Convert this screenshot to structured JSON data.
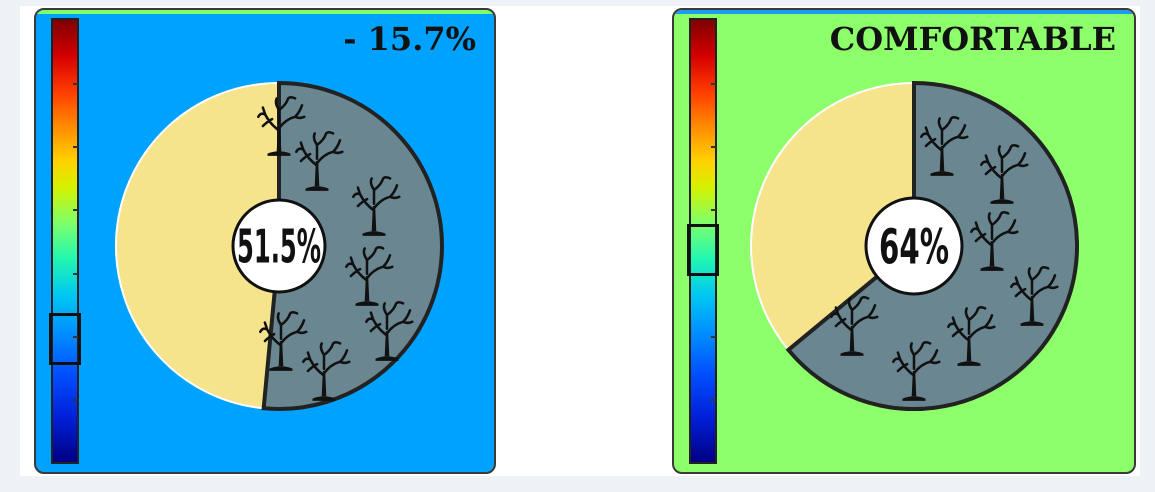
{
  "theme": {
    "panel_1_bg": "#00a2ff",
    "panel_1_rim": "#7dff6b",
    "panel_2_bg": "#8cff6a",
    "panel_2_rim": "#1c9cf0",
    "slice_primary": "#6a8791",
    "slice_secondary": "#f6e48c",
    "icon": "tree-icon"
  },
  "chart_data": [
    {
      "type": "pie",
      "headline": "- 15.7%",
      "center_label": "51.5%",
      "slices": [
        51.5,
        48.5
      ],
      "scale_marker": 0.72
    },
    {
      "type": "pie",
      "headline": "COMFORTABLE",
      "center_label": "64%",
      "slices": [
        64,
        36
      ],
      "scale_marker": 0.52
    }
  ]
}
